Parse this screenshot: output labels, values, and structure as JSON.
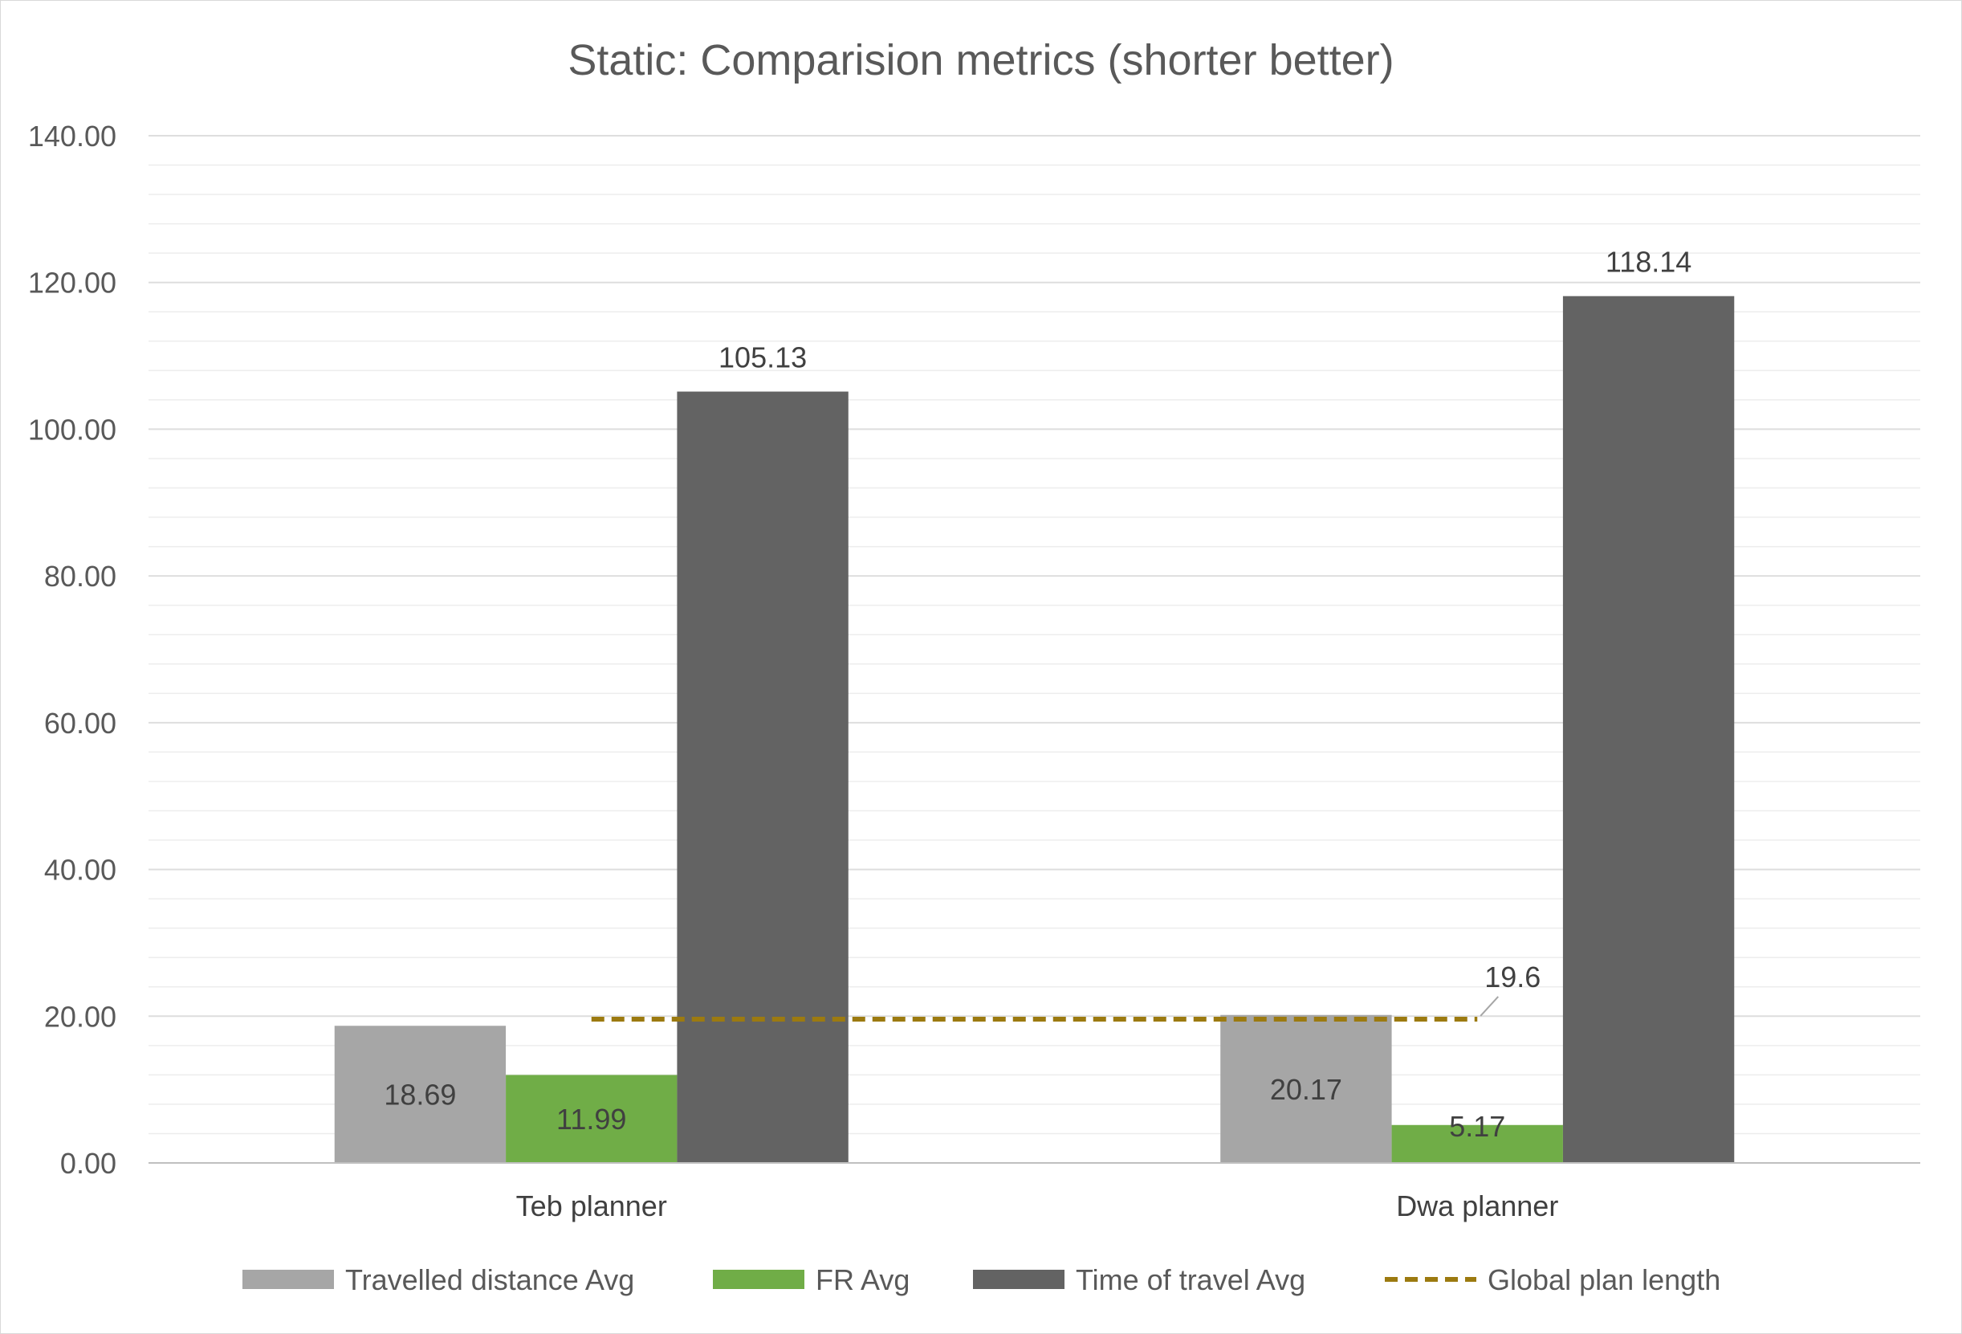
{
  "chart_data": {
    "type": "bar",
    "title": "Static: Comparision metrics (shorter better)",
    "xlabel": "",
    "ylabel": "",
    "categories": [
      "Teb planner",
      "Dwa planner"
    ],
    "ylim": [
      0,
      140
    ],
    "ytick_step": 20,
    "yminor_step": 4,
    "ytick_labels": [
      "0.00",
      "20.00",
      "40.00",
      "60.00",
      "80.00",
      "100.00",
      "120.00",
      "140.00"
    ],
    "grid": true,
    "legend_position": "bottom",
    "series": [
      {
        "name": "Travelled distance Avg",
        "type": "bar",
        "color": "#a6a6a6",
        "values": [
          18.69,
          20.17
        ],
        "labels": [
          "18.69",
          "20.17"
        ]
      },
      {
        "name": "FR Avg",
        "type": "bar",
        "color": "#70ad47",
        "values": [
          11.99,
          5.17
        ],
        "labels": [
          "11.99",
          "5.17"
        ]
      },
      {
        "name": "Time of travel Avg",
        "type": "bar",
        "color": "#636363",
        "values": [
          105.13,
          118.14
        ],
        "labels": [
          "105.13",
          "118.14"
        ]
      },
      {
        "name": "Global plan length",
        "type": "line",
        "style": "dashed",
        "color": "#9c7a10",
        "values": [
          19.6,
          19.6
        ],
        "labels": [
          "",
          "19.6"
        ]
      }
    ]
  }
}
